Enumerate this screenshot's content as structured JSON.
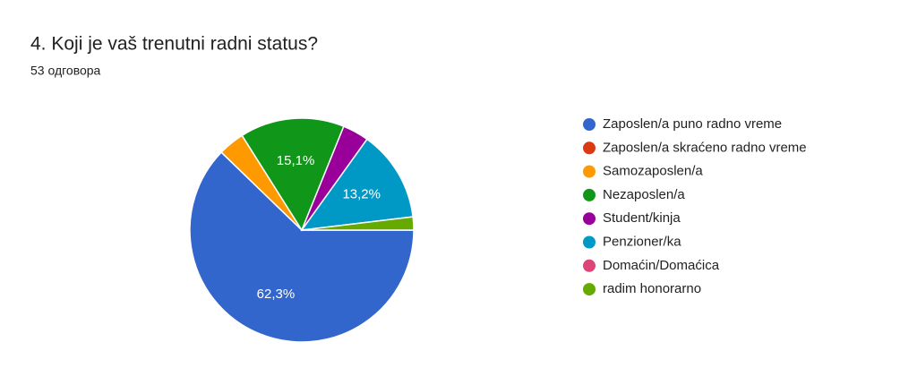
{
  "chart_data": {
    "type": "pie",
    "title": "4. Koji je vaš trenutni radni status?",
    "subtitle": "53 одговора",
    "categories": [
      "Zaposlen/a puno radno vreme",
      "Zaposlen/a skraćeno radno vreme",
      "Samozaposlen/a",
      "Nezaposlen/a",
      "Student/kinja",
      "Penzioner/ka",
      "Domaćin/Domaćica",
      "radim honorarno"
    ],
    "values": [
      62.3,
      0,
      3.8,
      15.1,
      3.8,
      13.2,
      0,
      1.9
    ],
    "value_labels": [
      "62,3%",
      null,
      null,
      "15,1%",
      null,
      "13,2%",
      null,
      null
    ],
    "colors": [
      "#3366cc",
      "#dc3912",
      "#ff9900",
      "#109618",
      "#990099",
      "#0099c6",
      "#dd4477",
      "#66aa00"
    ],
    "legend": "right"
  }
}
